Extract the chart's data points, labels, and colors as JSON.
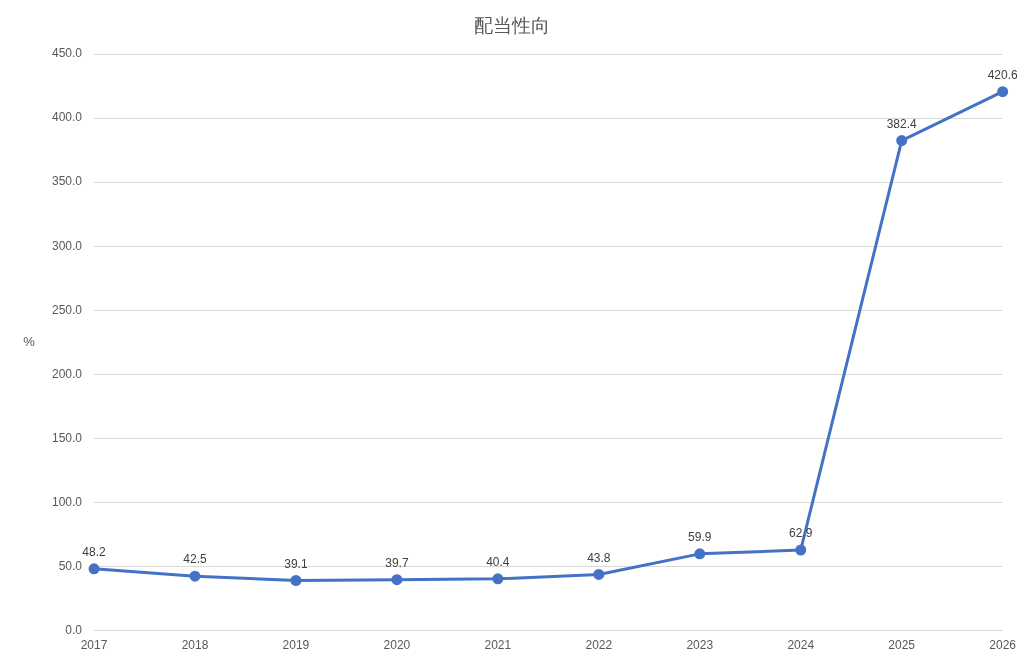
{
  "chart_data": {
    "type": "line",
    "title": "配当性向",
    "ylabel": "%",
    "categories": [
      "2017",
      "2018",
      "2019",
      "2020",
      "2021",
      "2022",
      "2023",
      "2024",
      "2025",
      "2026"
    ],
    "series": [
      {
        "color": "#4472c4",
        "values": [
          48.2,
          42.5,
          39.1,
          39.7,
          40.4,
          43.8,
          59.9,
          62.9,
          382.4,
          420.6
        ]
      }
    ],
    "ylim": [
      0,
      450
    ],
    "yticks": [
      {
        "value": 0,
        "label": "0.0"
      },
      {
        "value": 50,
        "label": "50.0"
      },
      {
        "value": 100,
        "label": "100.0"
      },
      {
        "value": 150,
        "label": "150.0"
      },
      {
        "value": 200,
        "label": "200.0"
      },
      {
        "value": 250,
        "label": "250.0"
      },
      {
        "value": 300,
        "label": "300.0"
      },
      {
        "value": 350,
        "label": "350.0"
      },
      {
        "value": 400,
        "label": "400.0"
      },
      {
        "value": 450,
        "label": "450.0"
      }
    ],
    "grid": "y",
    "legend": false,
    "marker": "circle",
    "line_style": "solid",
    "data_labels": true
  }
}
